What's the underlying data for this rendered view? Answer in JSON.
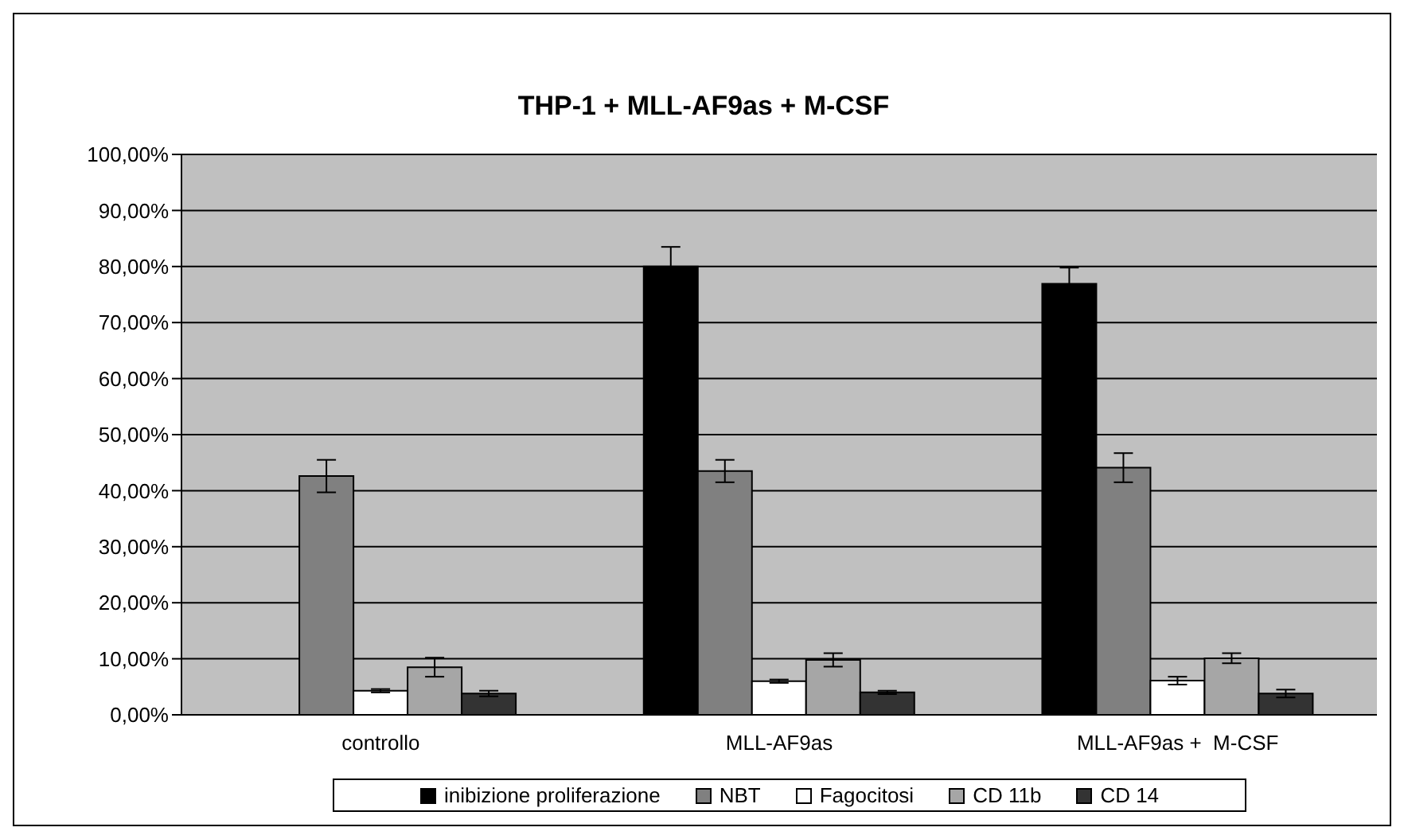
{
  "chart_data": {
    "type": "bar",
    "title": "THP-1 + MLL-AF9as + M-CSF",
    "categories": [
      "controllo",
      "MLL-AF9as",
      "MLL-AF9as +  M-CSF"
    ],
    "series": [
      {
        "name": "inibizione proliferazione",
        "color": "#000000",
        "values": [
          0,
          80.0,
          76.9
        ],
        "errors": [
          null,
          3.5,
          2.9
        ]
      },
      {
        "name": "NBT",
        "color": "#808080",
        "values": [
          42.6,
          43.5,
          44.1
        ],
        "errors": [
          2.9,
          2.0,
          2.6
        ]
      },
      {
        "name": "Fagocitosi",
        "color": "#ffffff",
        "values": [
          4.3,
          6.0,
          6.1
        ],
        "errors": [
          0.3,
          0.3,
          0.7
        ]
      },
      {
        "name": "CD 11b",
        "color": "#a6a6a6",
        "values": [
          8.5,
          9.8,
          10.1
        ],
        "errors": [
          1.7,
          1.2,
          0.9
        ]
      },
      {
        "name": "CD 14",
        "color": "#333333",
        "values": [
          3.8,
          4.0,
          3.8
        ],
        "errors": [
          0.5,
          0.3,
          0.7
        ]
      }
    ],
    "ylim": [
      0,
      100
    ],
    "yticks": [
      {
        "value": 0,
        "label": "0,00%"
      },
      {
        "value": 10,
        "label": "10,00%"
      },
      {
        "value": 20,
        "label": "20,00%"
      },
      {
        "value": 30,
        "label": "30,00%"
      },
      {
        "value": 40,
        "label": "40,00%"
      },
      {
        "value": 50,
        "label": "50,00%"
      },
      {
        "value": 60,
        "label": "60,00%"
      },
      {
        "value": 70,
        "label": "70,00%"
      },
      {
        "value": 80,
        "label": "80,00%"
      },
      {
        "value": 90,
        "label": "90,00%"
      },
      {
        "value": 100,
        "label": "100,00%"
      }
    ],
    "grid": "y",
    "legend": "bottom"
  }
}
